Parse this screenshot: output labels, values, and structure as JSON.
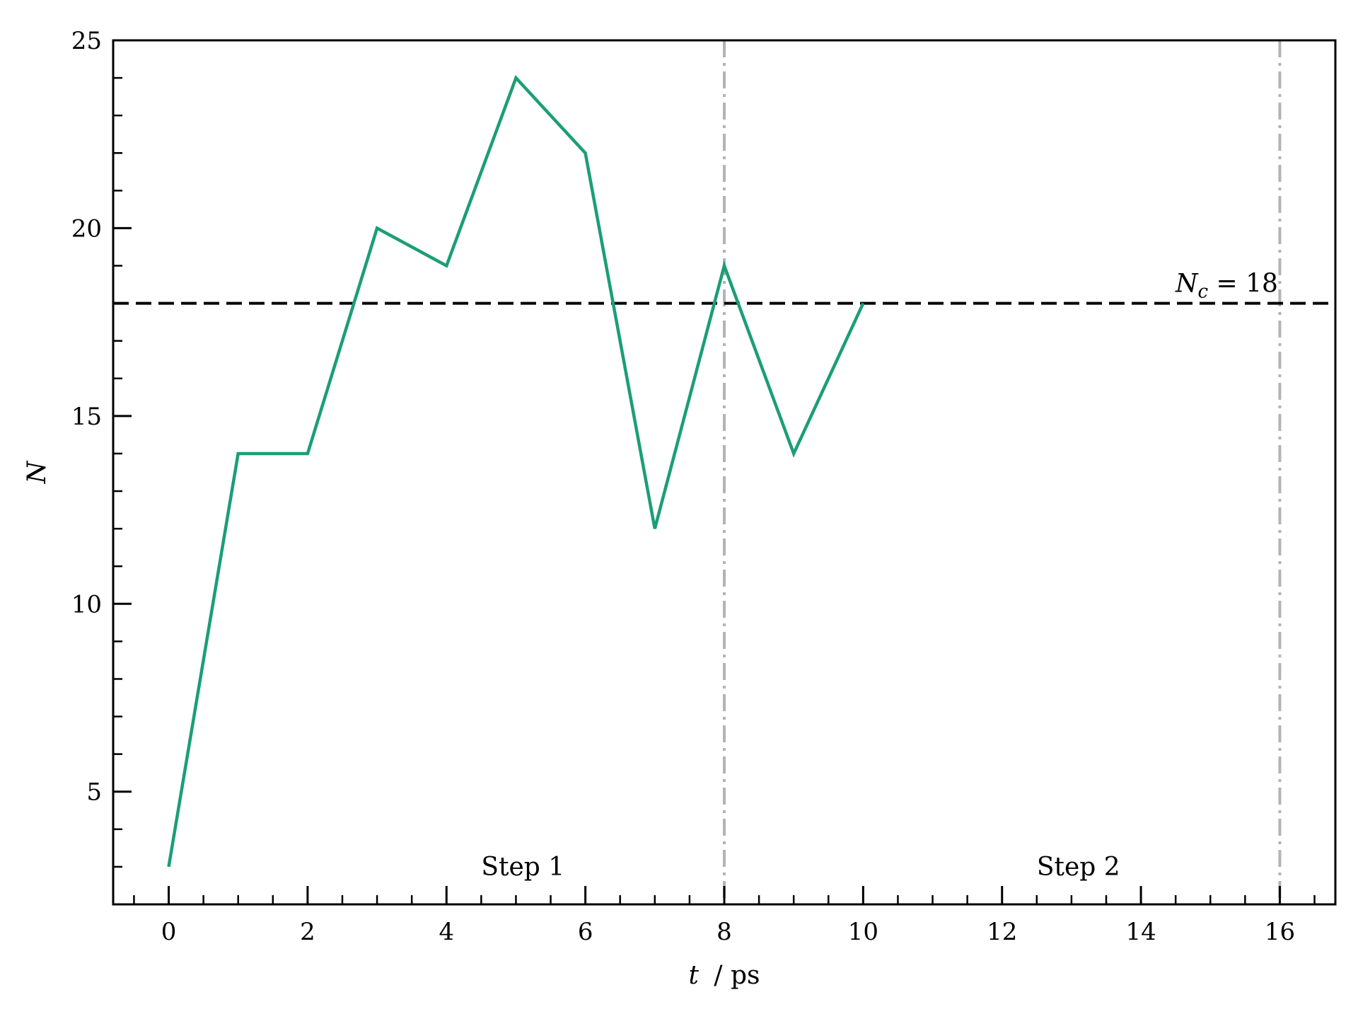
{
  "chart_data": {
    "type": "line",
    "title": "",
    "xlabel_var": "t",
    "xlabel_unit": "/ ps",
    "ylabel": "N",
    "xlim": [
      -0.8,
      16.8
    ],
    "ylim": [
      2,
      25
    ],
    "xticks": [
      0,
      2,
      4,
      6,
      8,
      10,
      12,
      14,
      16
    ],
    "xtick_labels": [
      "0",
      "2",
      "4",
      "6",
      "8",
      "10",
      "12",
      "14",
      "16"
    ],
    "yticks": [
      5,
      10,
      15,
      20,
      25
    ],
    "ytick_labels": [
      "5",
      "10",
      "15",
      "20",
      "25"
    ],
    "grid": false,
    "series": [
      {
        "color": "#1b9e77",
        "x": [
          0,
          1,
          2,
          3,
          4,
          5,
          6,
          7,
          8,
          9,
          10
        ],
        "y": [
          3,
          14,
          14,
          20,
          19,
          24,
          22,
          12,
          19,
          14,
          18
        ]
      }
    ],
    "threshold": {
      "value": 18,
      "label_var": "N",
      "label_sub": "c",
      "label_rest": " = 18",
      "color": "#000000"
    },
    "vlines": [
      {
        "x": 8,
        "color": "#b3b3b3"
      },
      {
        "x": 16,
        "color": "#b3b3b3"
      }
    ],
    "annotations": [
      {
        "text": "Step 1",
        "x": 5.1,
        "y": 3
      },
      {
        "text": "Step 2",
        "x": 13.1,
        "y": 3
      }
    ]
  }
}
